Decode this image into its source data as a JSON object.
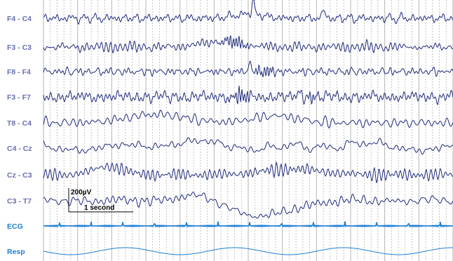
{
  "chart_data": {
    "type": "line",
    "title": "",
    "xlabel": "",
    "ylabel": "",
    "grid": "vertical dotted lines each 0.2 s, solid line each 1 s",
    "seconds_shown": 12,
    "series": [
      {
        "name": "F4 - C4",
        "color": "#1f2a7a",
        "features": [
          {
            "t": 6.15,
            "kind": "spike",
            "amp": -22,
            "width": 0.05
          },
          {
            "t": 8.2,
            "kind": "spike",
            "amp": -15,
            "width": 0.05
          },
          {
            "t": 6.0,
            "kind": "wave",
            "amp": -6,
            "width": 0.6
          }
        ]
      },
      {
        "name": "F3 - C3",
        "color": "#1f2a7a",
        "features": [
          {
            "t": 5.6,
            "kind": "burst",
            "amp": 8,
            "width": 0.7
          },
          {
            "t": 5.2,
            "kind": "wave",
            "amp": -8,
            "width": 0.8
          }
        ]
      },
      {
        "name": "F8 - F4",
        "color": "#1f2a7a",
        "features": [
          {
            "t": 6.05,
            "kind": "spike",
            "amp": -14,
            "width": 0.05
          },
          {
            "t": 6.5,
            "kind": "burst",
            "amp": 7,
            "width": 0.6
          }
        ]
      },
      {
        "name": "F3 - F7",
        "color": "#1f2a7a",
        "features": [
          {
            "t": 5.8,
            "kind": "burst",
            "amp": 10,
            "width": 0.5
          },
          {
            "t": 7.55,
            "kind": "spike",
            "amp": -10,
            "width": 0.05
          },
          {
            "t": 7.9,
            "kind": "burst",
            "amp": 6,
            "width": 0.3
          }
        ]
      },
      {
        "name": "T8 - C4",
        "color": "#1f2a7a",
        "features": [
          {
            "t": 3.3,
            "kind": "wave",
            "amp": -12,
            "width": 1.2
          },
          {
            "t": 6.8,
            "kind": "wave",
            "amp": -10,
            "width": 0.9
          }
        ]
      },
      {
        "name": "C4 - Cz",
        "color": "#1f2a7a",
        "features": [
          {
            "t": 4.2,
            "kind": "wave",
            "amp": -8,
            "width": 1.4
          },
          {
            "t": 9.0,
            "kind": "wave",
            "amp": -6,
            "width": 1.0
          }
        ]
      },
      {
        "name": "Cz - C3",
        "color": "#1f2a7a",
        "features": [
          {
            "t": 1.9,
            "kind": "wave",
            "amp": -12,
            "width": 0.6
          },
          {
            "t": 7.3,
            "kind": "wave",
            "amp": -8,
            "width": 1.2
          }
        ]
      },
      {
        "name": "C3 - T7",
        "color": "#1f2a7a",
        "features": [
          {
            "t": 6.4,
            "kind": "wave",
            "amp": 22,
            "width": 1.2
          },
          {
            "t": 4.5,
            "kind": "wave",
            "amp": -8,
            "width": 0.8
          }
        ]
      },
      {
        "name": "ECG",
        "color": "#1e7fd6",
        "features": [
          {
            "kind": "qrs",
            "period_s": 0.93,
            "amp": -6
          }
        ]
      },
      {
        "name": "Resp",
        "color": "#1e7fd6",
        "features": [
          {
            "kind": "sine",
            "period_s": 3.2,
            "amp": 5
          }
        ]
      }
    ],
    "scale_bar": {
      "amplitude_label": "200µV",
      "time_label": "1 second",
      "amplitude_uV": 200,
      "duration_s": 1
    }
  },
  "colors": {
    "eeg": "#1f2a7a",
    "ecg": "#1e7fd6",
    "resp": "#1e7fd6",
    "label_eeg": "#6a6fb0",
    "label_ecg": "#1e7fd6",
    "grid": "#b5b5b5",
    "scale": "#000000"
  }
}
